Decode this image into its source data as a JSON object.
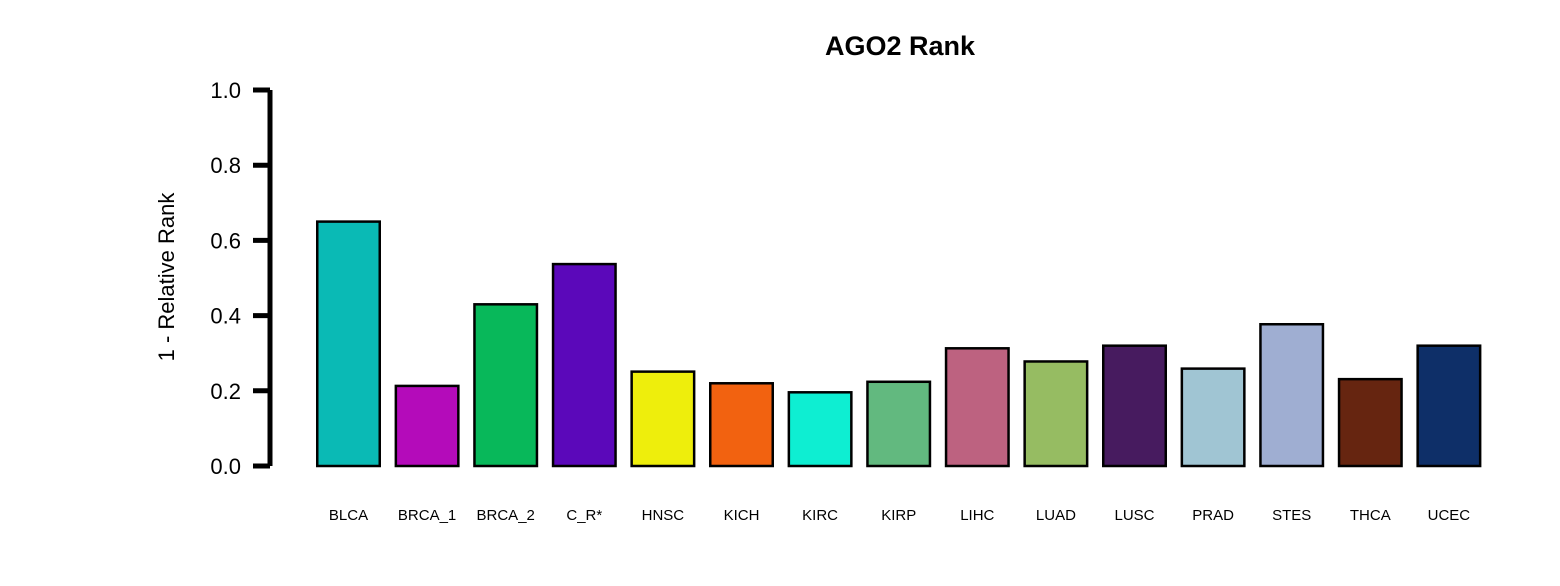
{
  "chart_data": {
    "type": "bar",
    "title": "AGO2 Rank",
    "xlabel": "",
    "ylabel": "1 - Relative Rank",
    "ylim": [
      0,
      1
    ],
    "yticks": [
      "0.0",
      "0.2",
      "0.4",
      "0.6",
      "0.8",
      "1.0"
    ],
    "categories": [
      "BLCA",
      "BRCA_1",
      "BRCA_2",
      "C_R*",
      "HNSC",
      "KICH",
      "KIRC",
      "KIRP",
      "LIHC",
      "LUAD",
      "LUSC",
      "PRAD",
      "STES",
      "THCA",
      "UCEC"
    ],
    "values": [
      0.65,
      0.213,
      0.43,
      0.537,
      0.251,
      0.22,
      0.196,
      0.224,
      0.313,
      0.278,
      0.32,
      0.259,
      0.377,
      0.231,
      0.32
    ],
    "colors": [
      "#0ABAB5",
      "#B40BBA",
      "#08B85A",
      "#5B08BA",
      "#EEEE0C",
      "#F26210",
      "#0EEED2",
      "#62B97F",
      "#BD6280",
      "#96BC62",
      "#471B5F",
      "#A0C5D3",
      "#9FAED2",
      "#662510",
      "#0E2F68"
    ],
    "grid": false,
    "legend": "none"
  }
}
